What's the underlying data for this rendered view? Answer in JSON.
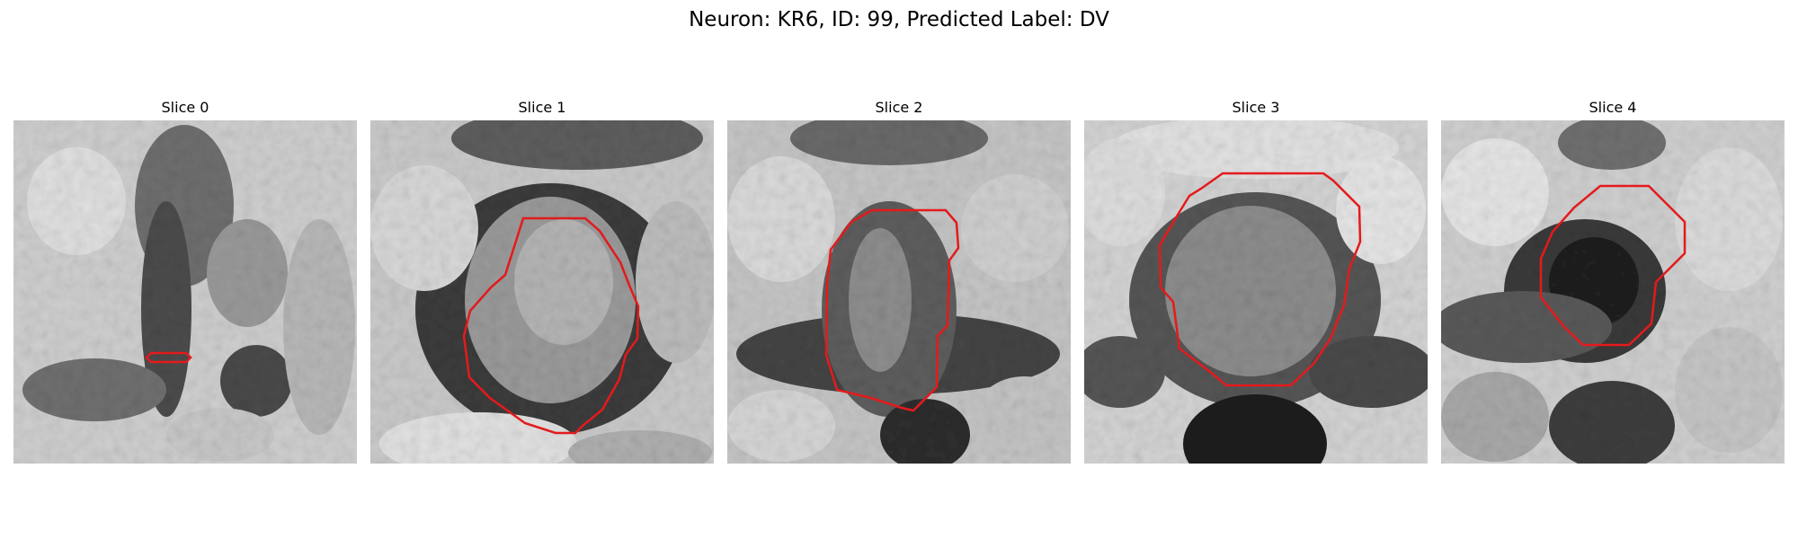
{
  "title": "Neuron: KR6, ID: 99, Predicted Label: DV",
  "slices": [
    {
      "label": "Slice 0"
    },
    {
      "label": "Slice 1"
    },
    {
      "label": "Slice 2"
    },
    {
      "label": "Slice 3"
    },
    {
      "label": "Slice 4"
    }
  ],
  "colors": {
    "contour": "#e41a1c",
    "background": "#ffffff"
  }
}
